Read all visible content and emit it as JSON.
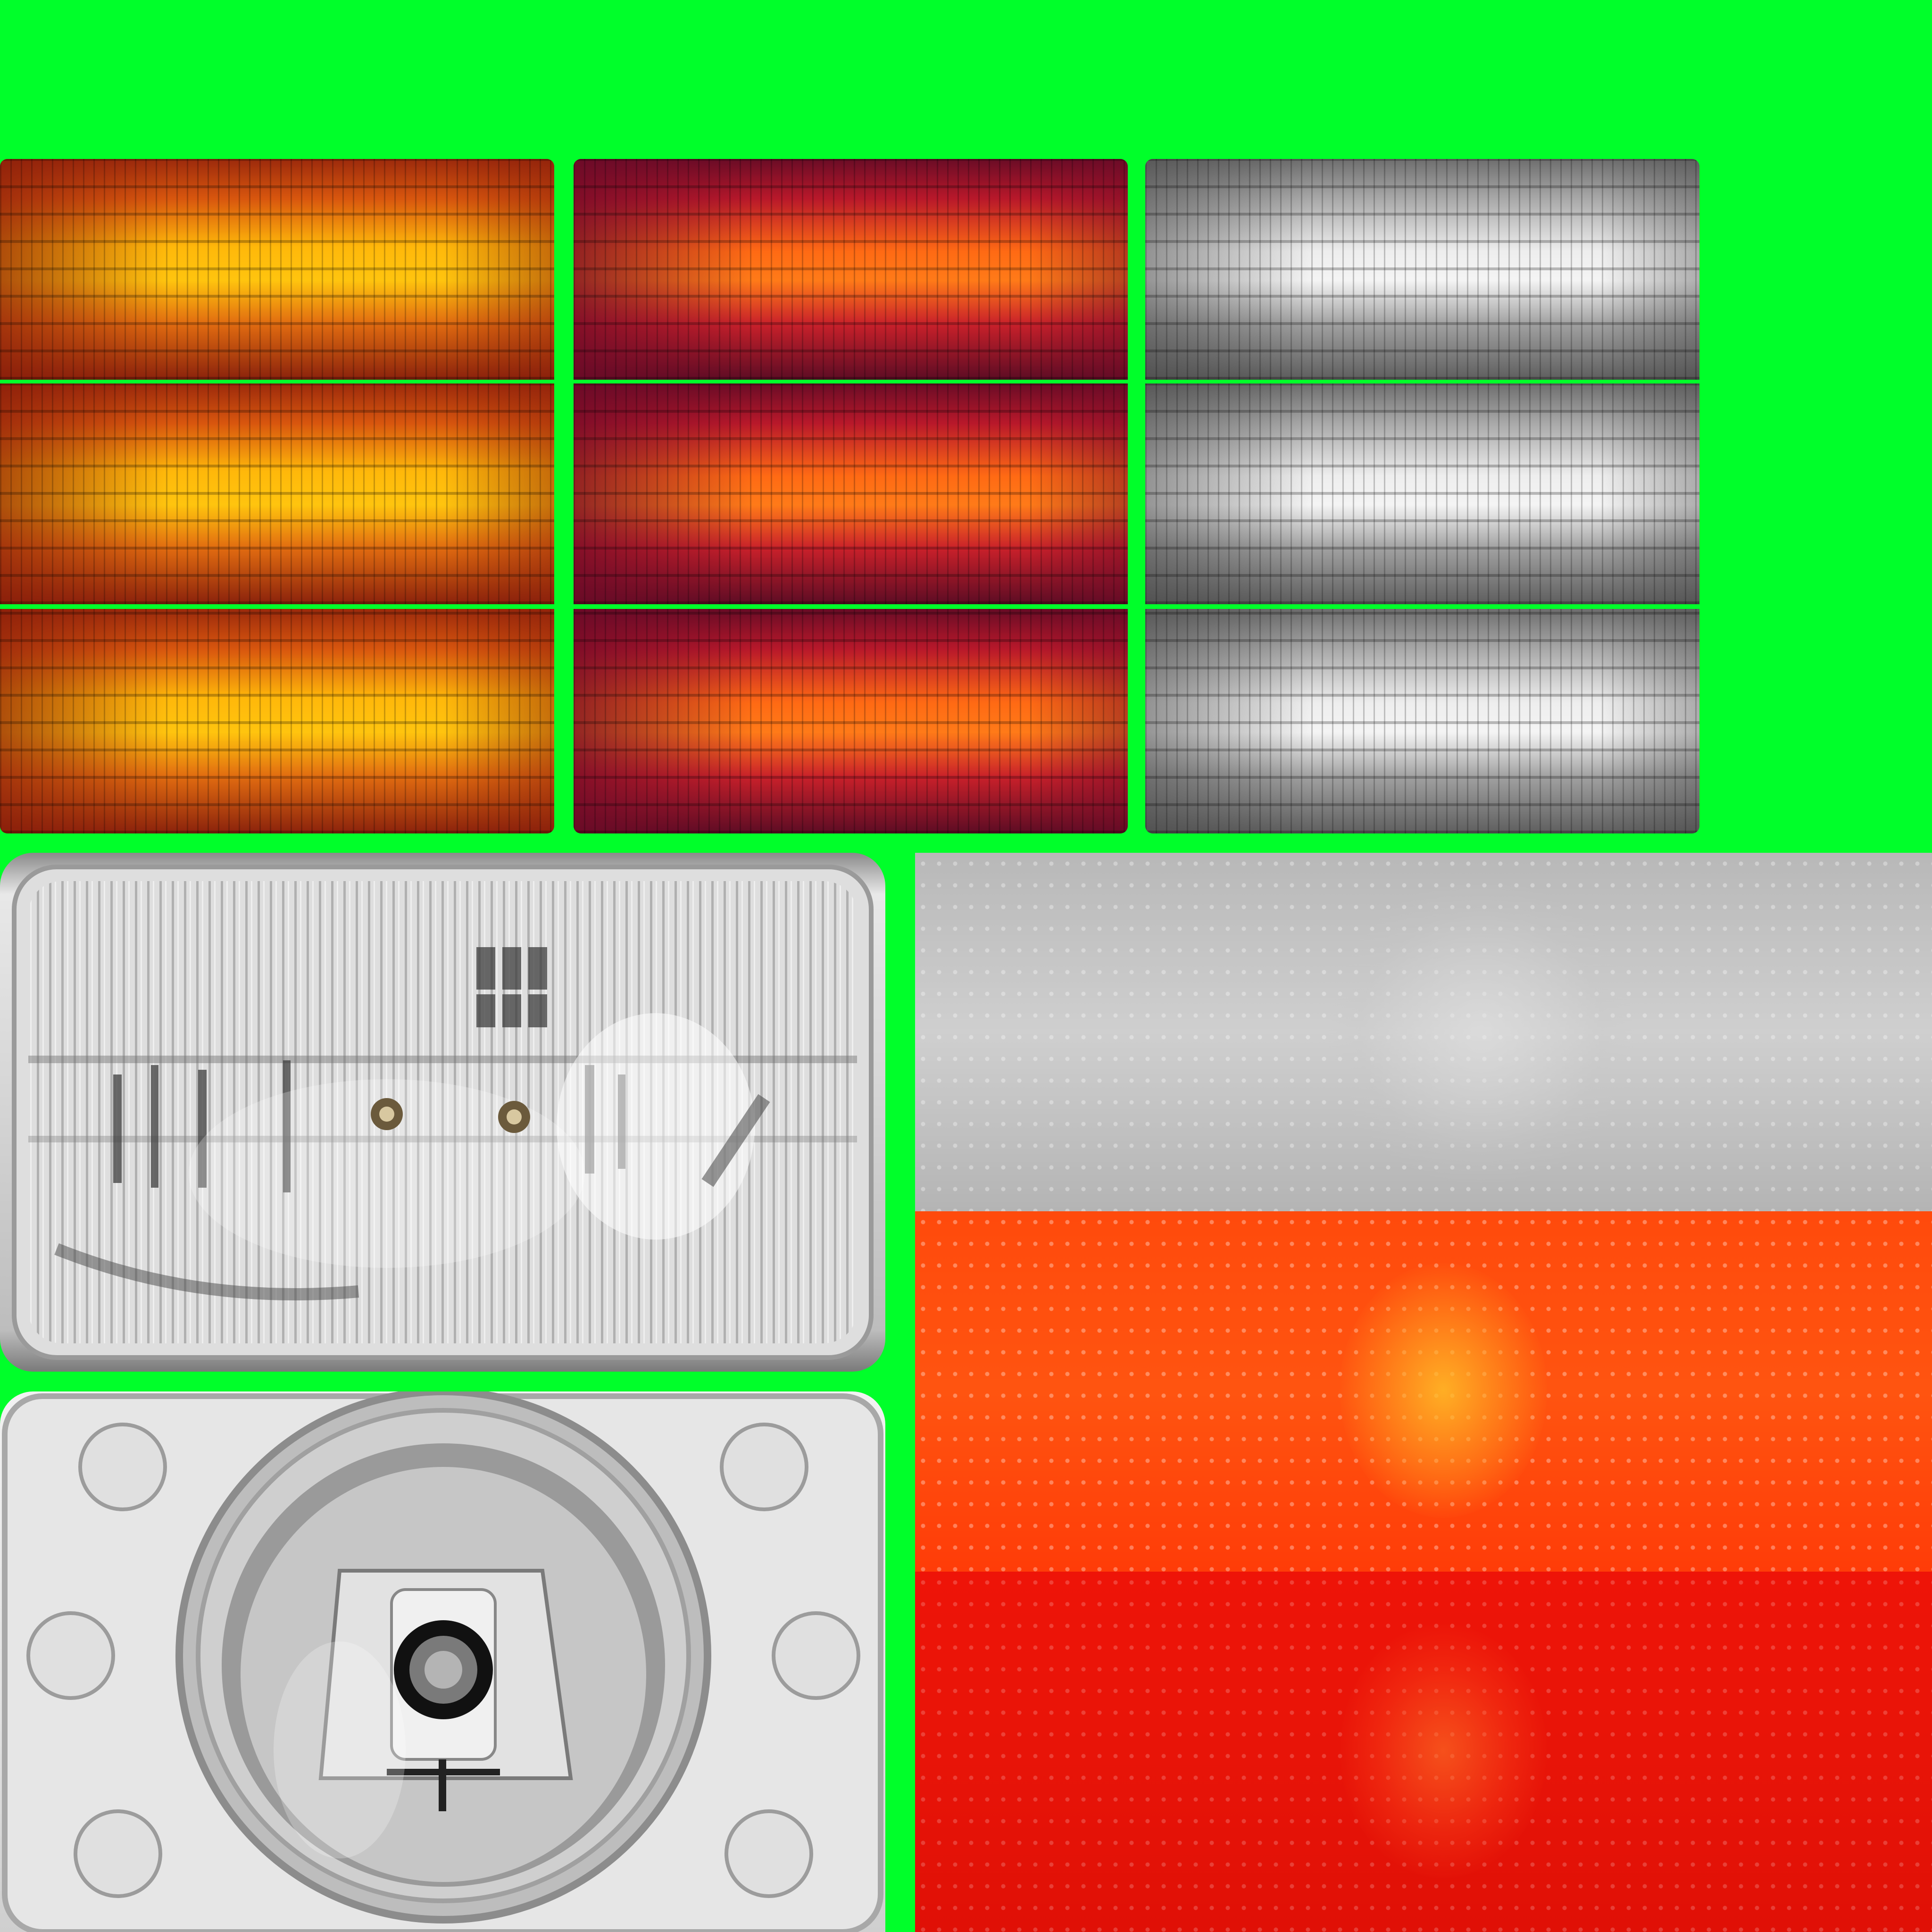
{
  "atlas": {
    "background": "#00ff2a"
  },
  "tail_lenses": [
    {
      "name": "amber-lens",
      "base": "#c0440e",
      "highlight": "#ffc20a",
      "shadow": "#7a1a0a"
    },
    {
      "name": "red-lens",
      "base": "#a01526",
      "highlight": "#ff7a14",
      "shadow": "#5c0c24"
    },
    {
      "name": "clear-lens",
      "base": "#9a9a9a",
      "highlight": "#f2f2f2",
      "shadow": "#5a5a5a"
    }
  ],
  "headlamps": {
    "sealed_beam": {
      "name": "sealed-beam-headlamp",
      "tone": "#d9d9d9"
    },
    "projector": {
      "name": "projector-headlamp",
      "tone": "#e4e4e4"
    }
  },
  "strips": [
    {
      "name": "clear-texture-strip",
      "color": "#c4c4c4"
    },
    {
      "name": "orange-texture-strip",
      "color": "#ff4a0c",
      "glow": "#ffb020"
    },
    {
      "name": "red-texture-strip",
      "color": "#ee1408",
      "glow": "#ff6a1a"
    }
  ]
}
